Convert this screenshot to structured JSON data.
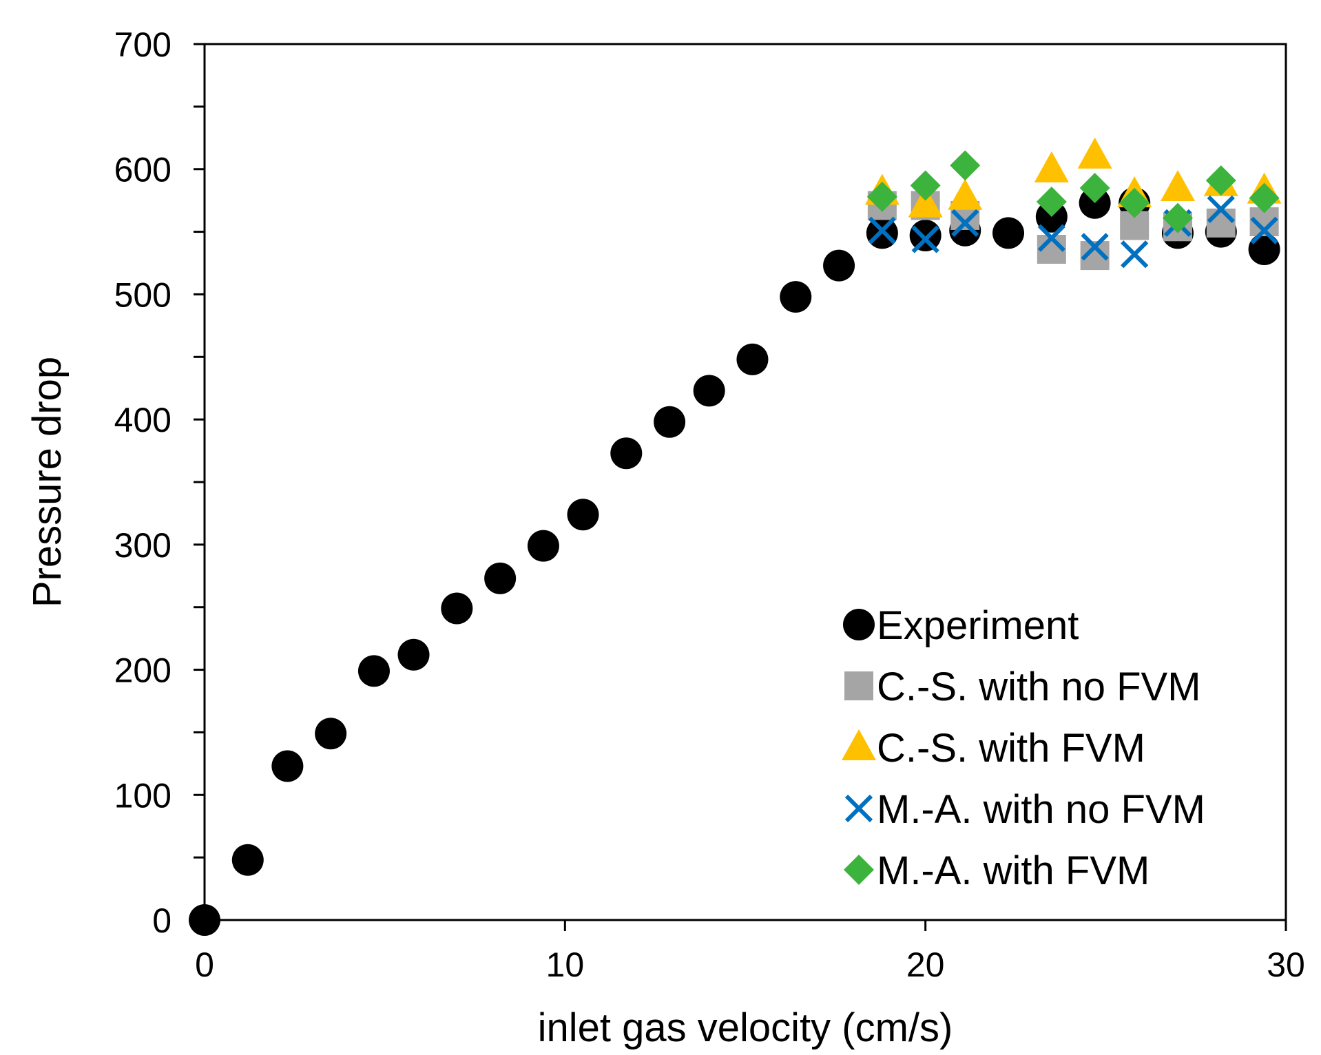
{
  "chart_data": {
    "type": "scatter",
    "title": "",
    "xlabel": "inlet gas velocity (cm/s)",
    "ylabel": "Pressure drop",
    "xlim": [
      0,
      30
    ],
    "ylim": [
      0,
      700
    ],
    "xticks": [
      0,
      10,
      20,
      30
    ],
    "yticks": [
      0,
      100,
      200,
      300,
      400,
      500,
      600,
      700
    ],
    "grid": false,
    "legend_position": "bottom-right",
    "series": [
      {
        "name": "Experiment",
        "marker": "circle",
        "color": "#000000",
        "points": [
          [
            0.0,
            0
          ],
          [
            1.2,
            48
          ],
          [
            2.3,
            123
          ],
          [
            3.5,
            149
          ],
          [
            4.7,
            199
          ],
          [
            5.8,
            212
          ],
          [
            7.0,
            249
          ],
          [
            8.2,
            273
          ],
          [
            9.4,
            299
          ],
          [
            10.5,
            324
          ],
          [
            11.7,
            373
          ],
          [
            12.9,
            398
          ],
          [
            14.0,
            423
          ],
          [
            15.2,
            448
          ],
          [
            16.4,
            498
          ],
          [
            17.6,
            523
          ],
          [
            18.8,
            549
          ],
          [
            20.0,
            547
          ],
          [
            21.1,
            551
          ],
          [
            22.3,
            549
          ],
          [
            23.5,
            562
          ],
          [
            24.7,
            573
          ],
          [
            25.8,
            573
          ],
          [
            27.0,
            549
          ],
          [
            28.2,
            550
          ],
          [
            29.4,
            536
          ]
        ]
      },
      {
        "name": "C.-S. with no FVM",
        "marker": "square",
        "color": "#a5a5a5",
        "points": [
          [
            18.8,
            571
          ],
          [
            20.0,
            571
          ],
          [
            21.1,
            563
          ],
          [
            23.5,
            536
          ],
          [
            24.7,
            531
          ],
          [
            25.8,
            555
          ],
          [
            27.0,
            554
          ],
          [
            28.2,
            557
          ],
          [
            29.4,
            558
          ]
        ]
      },
      {
        "name": "C.-S. with FVM",
        "marker": "triangle",
        "color": "#ffc000",
        "points": [
          [
            18.8,
            582
          ],
          [
            20.0,
            572
          ],
          [
            21.1,
            578
          ],
          [
            23.5,
            600
          ],
          [
            24.7,
            611
          ],
          [
            25.8,
            580
          ],
          [
            27.0,
            585
          ],
          [
            28.2,
            589
          ],
          [
            29.4,
            583
          ]
        ]
      },
      {
        "name": "M.-A. with no FVM",
        "marker": "x",
        "color": "#0070c0",
        "points": [
          [
            18.8,
            551
          ],
          [
            20.0,
            544
          ],
          [
            21.1,
            557
          ],
          [
            23.5,
            545
          ],
          [
            24.7,
            538
          ],
          [
            25.8,
            532
          ],
          [
            27.0,
            557
          ],
          [
            28.2,
            568
          ],
          [
            29.4,
            551
          ]
        ]
      },
      {
        "name": "M.-A. with FVM",
        "marker": "diamond",
        "color": "#3cb33c",
        "points": [
          [
            18.8,
            578
          ],
          [
            20.0,
            587
          ],
          [
            21.1,
            603
          ],
          [
            23.5,
            574
          ],
          [
            24.7,
            585
          ],
          [
            25.8,
            573
          ],
          [
            27.0,
            561
          ],
          [
            28.2,
            591
          ],
          [
            29.4,
            577
          ]
        ]
      }
    ]
  }
}
